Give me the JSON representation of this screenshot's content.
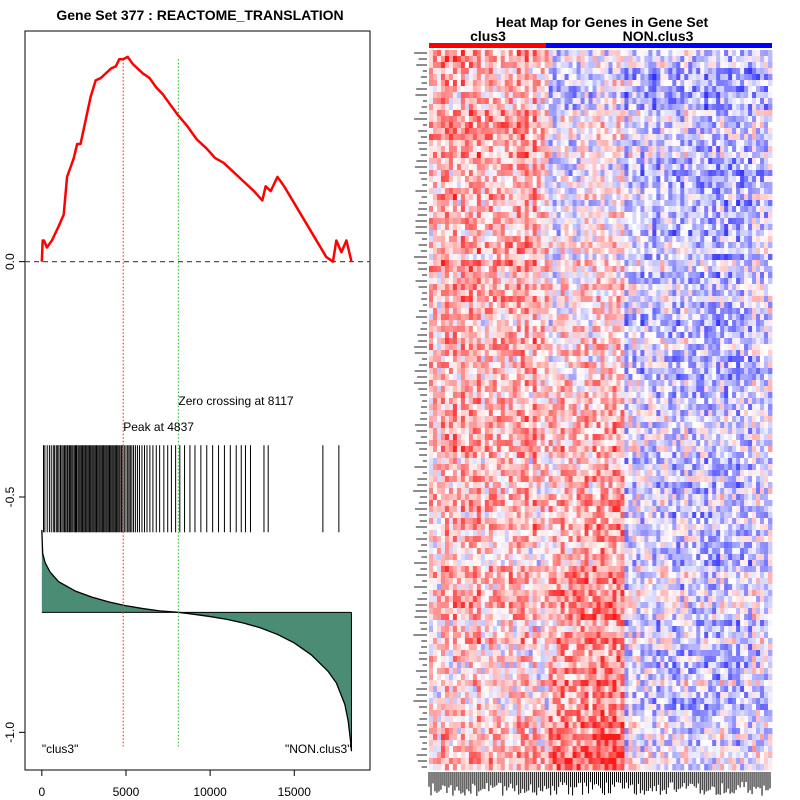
{
  "chart_data": [
    {
      "type": "line",
      "title": "Gene Set  377 : REACTOME_TRANSLATION",
      "xlabel": "",
      "ylabel": "",
      "xlim": [
        -1000,
        19500
      ],
      "ylim": [
        -1.08,
        0.49
      ],
      "x_ticks": [
        0,
        5000,
        10000,
        15000
      ],
      "x_tick_labels": [
        "0",
        "5000",
        "10000",
        "15000"
      ],
      "y_ticks": [
        0.0,
        -0.5,
        -1.0
      ],
      "y_tick_labels": [
        "0.0",
        "-0.5",
        "-1.0"
      ],
      "zero_line": 0.0,
      "peak": {
        "x": 4837,
        "label": "Peak at 4837",
        "color": "#e8463c"
      },
      "zero_crossing": {
        "x": 8117,
        "label": "Zero crossing at 8117",
        "color": "#3cc23c"
      },
      "running_es": {
        "name": "running enrichment score",
        "color": "#ff0000",
        "x": [
          0,
          50,
          130,
          300,
          600,
          800,
          1000,
          1300,
          1500,
          1700,
          1900,
          2100,
          2300,
          2600,
          2900,
          3200,
          3500,
          3800,
          4100,
          4400,
          4600,
          4837,
          5100,
          5400,
          5700,
          6000,
          6400,
          6800,
          7200,
          7600,
          8117,
          8600,
          9200,
          9800,
          10300,
          10800,
          11400,
          12000,
          12600,
          13100,
          13300,
          13600,
          13800,
          14000,
          14400,
          14900,
          15400,
          15900,
          16400,
          16900,
          17300,
          17500,
          17800,
          18100,
          18400
        ],
        "y": [
          0.0,
          0.045,
          0.045,
          0.03,
          0.045,
          0.06,
          0.075,
          0.1,
          0.18,
          0.2,
          0.22,
          0.25,
          0.25,
          0.3,
          0.35,
          0.385,
          0.39,
          0.4,
          0.41,
          0.415,
          0.43,
          0.43,
          0.435,
          0.42,
          0.41,
          0.4,
          0.39,
          0.37,
          0.355,
          0.335,
          0.31,
          0.29,
          0.26,
          0.24,
          0.22,
          0.21,
          0.19,
          0.17,
          0.15,
          0.13,
          0.16,
          0.15,
          0.165,
          0.18,
          0.16,
          0.13,
          0.1,
          0.07,
          0.04,
          0.01,
          0.0,
          0.045,
          0.02,
          0.045,
          0.0
        ]
      },
      "hit_positions": [
        100,
        180,
        320,
        450,
        560,
        680,
        760,
        860,
        940,
        1020,
        1110,
        1190,
        1270,
        1350,
        1420,
        1500,
        1560,
        1640,
        1710,
        1780,
        1850,
        1930,
        2000,
        2060,
        2140,
        2210,
        2280,
        2350,
        2420,
        2490,
        2560,
        2620,
        2690,
        2760,
        2830,
        2900,
        2970,
        3040,
        3110,
        3180,
        3250,
        3320,
        3390,
        3460,
        3530,
        3600,
        3670,
        3740,
        3810,
        3880,
        3950,
        4020,
        4090,
        4160,
        4230,
        4300,
        4370,
        4440,
        4510,
        4580,
        4650,
        4730,
        4810,
        4900,
        5000,
        5100,
        5180,
        5260,
        5350,
        5450,
        5560,
        5680,
        5800,
        5950,
        6100,
        6250,
        6420,
        6600,
        6800,
        7000,
        7250,
        7480,
        7700,
        7950,
        8200,
        8480,
        8800,
        9100,
        9450,
        9800,
        10150,
        10500,
        10850,
        11200,
        11550,
        11850,
        12100,
        12400,
        13200,
        13450,
        16700,
        17650
      ],
      "ranked_metric": {
        "fill_color": "#4a8c74",
        "baseline": -0.745,
        "x": [
          0,
          50,
          200,
          500,
          1000,
          2000,
          3000,
          4000,
          5000,
          6000,
          7000,
          8117,
          9000,
          10000,
          11000,
          12000,
          13000,
          14000,
          15000,
          16000,
          17000,
          17500,
          18000,
          18200,
          18350,
          18400
        ],
        "y": [
          -0.57,
          -0.62,
          -0.64,
          -0.66,
          -0.68,
          -0.7,
          -0.713,
          -0.723,
          -0.731,
          -0.737,
          -0.742,
          -0.745,
          -0.749,
          -0.754,
          -0.76,
          -0.768,
          -0.778,
          -0.792,
          -0.81,
          -0.835,
          -0.87,
          -0.895,
          -0.94,
          -0.975,
          -1.02,
          -1.04
        ]
      },
      "annotations": [
        {
          "text": "\"clus3\"",
          "x": 0,
          "y": -1.035,
          "anchor": "start"
        },
        {
          "text": "\"NON.clus3\"",
          "x": 18400,
          "y": -1.035,
          "anchor": "end"
        }
      ]
    },
    {
      "type": "heatmap",
      "title": "Heat Map for Genes in Gene Set",
      "groups": [
        {
          "label": "clus3",
          "color": "#ff0000",
          "fraction": 0.34
        },
        {
          "label": "NON.clus3",
          "color": "#0000ff",
          "fraction": 0.66
        }
      ],
      "low_color": "#0000ff",
      "mid_color": "#ffffff",
      "high_color": "#ff0000"
    }
  ]
}
